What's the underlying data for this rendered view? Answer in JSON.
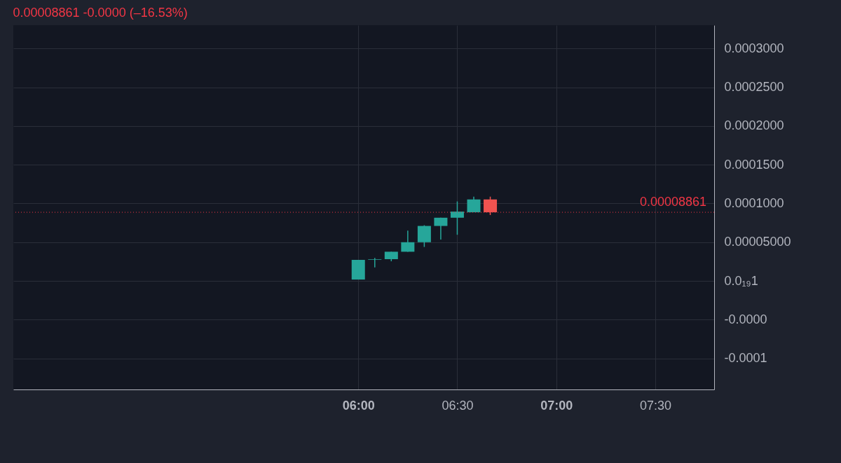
{
  "chart_data": {
    "type": "candlestick",
    "title": "0.00008861  -0.0000 (–16.53%)",
    "x": [
      6,
      6.08333,
      6.16667,
      6.25,
      6.33333,
      6.41667,
      6.5,
      6.58333,
      6.66667
    ],
    "ohlc": [
      [
        1.8e-06,
        2.72e-05,
        1.8e-06,
        2.72e-05
      ],
      [
        2.72e-05,
        2.98e-05,
        1.75e-05,
        2.8e-05
      ],
      [
        2.81e-05,
        3.77e-05,
        2.54e-05,
        3.77e-05
      ],
      [
        3.77e-05,
        6.49e-05,
        3.77e-05,
        5e-05
      ],
      [
        5e-05,
        7.19e-05,
        4.39e-05,
        7.1e-05
      ],
      [
        7.1e-05,
        8.16e-05,
        5.35e-05,
        8.16e-05
      ],
      [
        8.16e-05,
        0.0001026,
        5.96e-05,
        8.95e-05
      ],
      [
        8.86e-05,
        0.0001088,
        8.86e-05,
        0.0001052
      ],
      [
        0.0001052,
        0.0001088,
        8.51e-05,
        8.861e-05
      ]
    ],
    "colors": [
      "#26a69a",
      "#26a69a",
      "#26a69a",
      "#26a69a",
      "#26a69a",
      "#26a69a",
      "#26a69a",
      "#26a69a",
      "#ef5350"
    ],
    "xlim": [
      4.275,
      7.78
    ],
    "xticks": [
      {
        "value": 6,
        "label": "06:00"
      },
      {
        "value": 6.5,
        "label": "06:30"
      },
      {
        "value": 7,
        "label": "07:00"
      },
      {
        "value": 7.5,
        "label": "07:30"
      }
    ],
    "ylim": [
      -0.00014,
      0.00033
    ],
    "yticks": [
      {
        "value": -0.0001,
        "label": "-0.0001"
      },
      {
        "value": -5e-05,
        "label": "-0.0000"
      },
      {
        "value": 0,
        "label": "0.0₁₉1"
      },
      {
        "value": 5e-05,
        "label": "0.00005000"
      },
      {
        "value": 0.0001,
        "label": "0.0001000"
      },
      {
        "value": 0.00015,
        "label": "0.0001500"
      },
      {
        "value": 0.0002,
        "label": "0.0002000"
      },
      {
        "value": 0.00025,
        "label": "0.0002500"
      },
      {
        "value": 0.0003,
        "label": "0.0003000"
      }
    ],
    "ref_lines": [
      {
        "axis": "y",
        "value": 8.861e-05,
        "label": "0.00008861",
        "color": "#f23645",
        "line_style": "dotted"
      }
    ],
    "grid": true
  }
}
